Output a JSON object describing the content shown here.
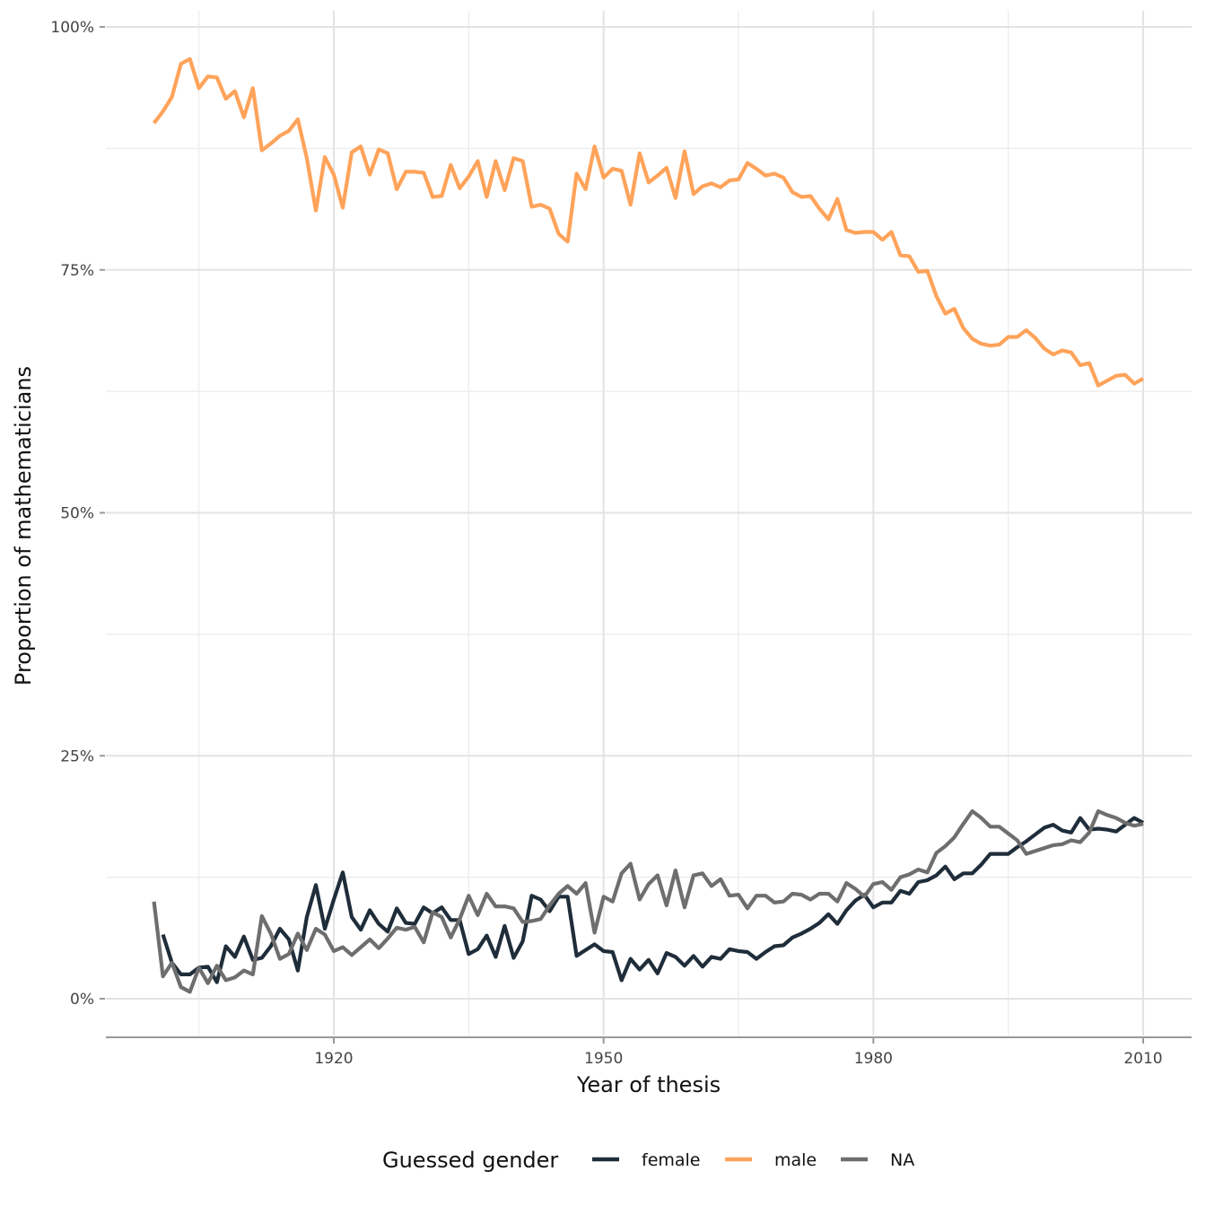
{
  "chart_data": {
    "type": "line",
    "title": "",
    "xlabel": "Year of thesis",
    "ylabel": "Proportion of mathematicians",
    "xlim": [
      1895,
      2015
    ],
    "ylim": [
      -3.7,
      101
    ],
    "x_ticks": [
      1920,
      1950,
      1980,
      2010
    ],
    "x_tick_labels": [
      "1920",
      "1950",
      "1980",
      "2010"
    ],
    "x_minor_ticks": [
      1905,
      1935,
      1965,
      1995
    ],
    "y_ticks": [
      0,
      25,
      50,
      75,
      100
    ],
    "y_tick_labels": [
      "0%",
      "25%",
      "50%",
      "75%",
      "100%"
    ],
    "y_minor_ticks": [
      12.5,
      37.5,
      62.5,
      87.5
    ],
    "grid": true,
    "legend": {
      "title": "Guessed gender",
      "position": "bottom",
      "entries": [
        "female",
        "male",
        "NA"
      ]
    },
    "series": [
      {
        "name": "female",
        "color": "#1f2d3a",
        "x_start": 1901,
        "values": [
          6.6,
          3.7,
          2.5,
          2.5,
          3.2,
          3.3,
          1.7,
          5.4,
          4.3,
          6.4,
          4.0,
          4.2,
          5.4,
          7.2,
          6.1,
          2.9,
          8.4,
          11.7,
          7.2,
          10.2,
          13.0,
          8.4,
          7.1,
          9.1,
          7.7,
          6.9,
          9.3,
          7.8,
          7.7,
          9.4,
          8.8,
          9.4,
          8.1,
          8.1,
          4.6,
          5.1,
          6.5,
          4.3,
          7.5,
          4.2,
          5.9,
          10.6,
          10.2,
          9.0,
          10.5,
          10.5,
          4.4,
          5.0,
          5.6,
          4.9,
          4.8,
          1.9,
          4.1,
          3.0,
          4.0,
          2.6,
          4.7,
          4.3,
          3.4,
          4.4,
          3.3,
          4.3,
          4.1,
          5.1,
          4.9,
          4.8,
          4.1,
          4.8,
          5.4,
          5.5,
          6.3,
          6.7,
          7.2,
          7.8,
          8.7,
          7.7,
          9.1,
          10.1,
          10.7,
          9.4,
          9.9,
          9.9,
          11.1,
          10.8,
          12.0,
          12.2,
          12.7,
          13.6,
          12.3,
          12.9,
          12.9,
          13.8,
          14.9,
          14.9,
          14.9,
          15.6,
          16.2,
          16.9,
          17.6,
          17.9,
          17.3,
          17.1,
          18.6,
          17.4,
          17.5,
          17.4,
          17.2,
          17.9,
          18.6,
          18.1
        ]
      },
      {
        "name": "male",
        "color": "#ffa35a",
        "x_start": 1900,
        "values": [
          90.1,
          91.3,
          92.8,
          96.2,
          96.7,
          93.7,
          94.9,
          94.8,
          92.6,
          93.4,
          90.7,
          93.7,
          87.3,
          88.0,
          88.8,
          89.3,
          90.5,
          86.5,
          81.1,
          86.6,
          84.8,
          81.4,
          87.1,
          87.7,
          84.8,
          87.4,
          87.0,
          83.3,
          85.1,
          85.1,
          85.0,
          82.5,
          82.6,
          85.8,
          83.4,
          84.6,
          86.2,
          82.5,
          86.2,
          83.2,
          86.5,
          86.2,
          81.5,
          81.7,
          81.3,
          78.7,
          77.9,
          84.9,
          83.3,
          87.7,
          84.5,
          85.4,
          85.2,
          81.7,
          87.0,
          84.0,
          84.7,
          85.5,
          82.4,
          87.2,
          82.8,
          83.6,
          83.9,
          83.5,
          84.2,
          84.3,
          86.0,
          85.4,
          84.7,
          84.9,
          84.5,
          83.0,
          82.5,
          82.6,
          81.3,
          80.2,
          82.3,
          79.1,
          78.8,
          78.9,
          78.9,
          78.1,
          78.9,
          76.5,
          76.4,
          74.8,
          74.9,
          72.3,
          70.5,
          71.0,
          69.0,
          67.9,
          67.4,
          67.2,
          67.3,
          68.1,
          68.1,
          68.8,
          68.0,
          66.9,
          66.3,
          66.7,
          66.5,
          65.2,
          65.4,
          63.1,
          63.6,
          64.1,
          64.2,
          63.3,
          63.8
        ]
      },
      {
        "name": "NA",
        "color": "#6e6e6e",
        "x_start": 1900,
        "values": [
          10.0,
          2.3,
          3.7,
          1.2,
          0.7,
          3.2,
          1.6,
          3.4,
          1.9,
          2.2,
          2.9,
          2.5,
          8.5,
          6.7,
          4.1,
          4.6,
          6.7,
          5.0,
          7.2,
          6.6,
          4.9,
          5.3,
          4.5,
          5.3,
          6.1,
          5.2,
          6.2,
          7.3,
          7.1,
          7.4,
          5.8,
          8.9,
          8.4,
          6.3,
          8.2,
          10.6,
          8.6,
          10.8,
          9.5,
          9.5,
          9.3,
          7.9,
          8.0,
          8.2,
          9.6,
          10.8,
          11.6,
          10.8,
          11.9,
          6.8,
          10.5,
          10.0,
          12.9,
          13.9,
          10.2,
          11.8,
          12.7,
          9.6,
          13.2,
          9.4,
          12.7,
          12.9,
          11.6,
          12.3,
          10.6,
          10.7,
          9.3,
          10.6,
          10.6,
          9.9,
          10.0,
          10.8,
          10.7,
          10.2,
          10.8,
          10.8,
          10.0,
          11.9,
          11.3,
          10.5,
          11.8,
          12.0,
          11.2,
          12.5,
          12.8,
          13.3,
          13.0,
          15.0,
          15.7,
          16.6,
          18.0,
          19.3,
          18.6,
          17.7,
          17.7,
          17.0,
          16.3,
          14.9,
          15.2,
          15.5,
          15.8,
          15.9,
          16.3,
          16.1,
          17.1,
          19.3,
          18.9,
          18.6,
          18.1,
          17.8,
          18.0
        ]
      }
    ]
  }
}
